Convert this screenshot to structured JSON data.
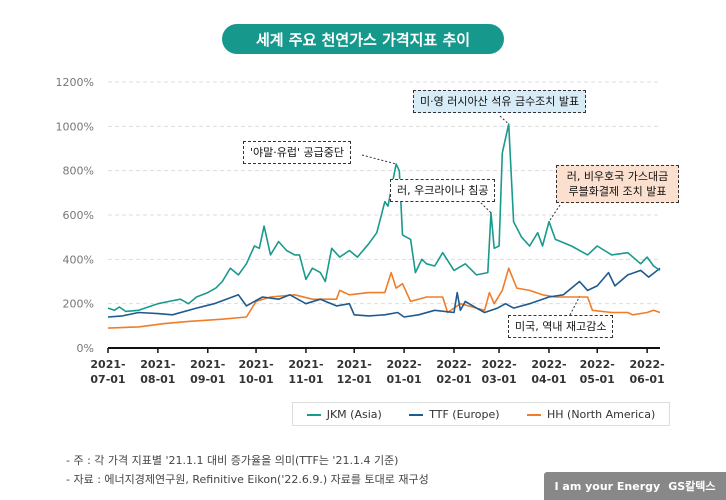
{
  "title": "세계 주요 천연가스 가격지표 추이",
  "chart_data": {
    "type": "line",
    "title": "세계 주요 천연가스 가격지표 추이",
    "ylim": [
      0,
      1200
    ],
    "yticks": [
      "0%",
      "200%",
      "400%",
      "600%",
      "800%",
      "1000%",
      "1200%"
    ],
    "xticks": [
      [
        "2021-",
        "07-01"
      ],
      [
        "2021-",
        "08-01"
      ],
      [
        "2021-",
        "09-01"
      ],
      [
        "2021-",
        "10-01"
      ],
      [
        "2021-",
        "11-01"
      ],
      [
        "2021-",
        "12-01"
      ],
      [
        "2022-",
        "01-01"
      ],
      [
        "2022-",
        "02-01"
      ],
      [
        "2022-",
        "03-01"
      ],
      [
        "2022-",
        "04-01"
      ],
      [
        "2022-",
        "05-01"
      ],
      [
        "2022-",
        "06-01"
      ]
    ],
    "xrange": [
      "2021-07-01",
      "2022-06-09"
    ],
    "grid": "horizontal dashed",
    "legend_position": "bottom-right",
    "series": [
      {
        "name": "JKM (Asia)",
        "color": "#1a9a8c",
        "points": [
          [
            "2021-07-01",
            180
          ],
          [
            "2021-07-05",
            170
          ],
          [
            "2021-07-08",
            185
          ],
          [
            "2021-07-12",
            165
          ],
          [
            "2021-07-20",
            170
          ],
          [
            "2021-07-28",
            190
          ],
          [
            "2021-08-01",
            200
          ],
          [
            "2021-08-08",
            210
          ],
          [
            "2021-08-15",
            220
          ],
          [
            "2021-08-20",
            200
          ],
          [
            "2021-08-25",
            230
          ],
          [
            "2021-09-01",
            250
          ],
          [
            "2021-09-06",
            270
          ],
          [
            "2021-09-10",
            300
          ],
          [
            "2021-09-15",
            360
          ],
          [
            "2021-09-20",
            330
          ],
          [
            "2021-09-25",
            380
          ],
          [
            "2021-09-30",
            460
          ],
          [
            "2021-10-03",
            450
          ],
          [
            "2021-10-06",
            550
          ],
          [
            "2021-10-10",
            420
          ],
          [
            "2021-10-15",
            480
          ],
          [
            "2021-10-20",
            440
          ],
          [
            "2021-10-25",
            420
          ],
          [
            "2021-10-28",
            420
          ],
          [
            "2021-11-01",
            310
          ],
          [
            "2021-11-05",
            360
          ],
          [
            "2021-11-10",
            340
          ],
          [
            "2021-11-13",
            300
          ],
          [
            "2021-11-17",
            450
          ],
          [
            "2021-11-22",
            410
          ],
          [
            "2021-11-28",
            440
          ],
          [
            "2021-12-03",
            410
          ],
          [
            "2021-12-10",
            470
          ],
          [
            "2021-12-15",
            520
          ],
          [
            "2021-12-20",
            660
          ],
          [
            "2021-12-22",
            640
          ],
          [
            "2021-12-27",
            830
          ],
          [
            "2021-12-29",
            800
          ],
          [
            "2021-12-31",
            510
          ],
          [
            "2022-01-05",
            490
          ],
          [
            "2022-01-08",
            340
          ],
          [
            "2022-01-12",
            400
          ],
          [
            "2022-01-15",
            380
          ],
          [
            "2022-01-20",
            370
          ],
          [
            "2022-01-25",
            430
          ],
          [
            "2022-02-01",
            350
          ],
          [
            "2022-02-08",
            380
          ],
          [
            "2022-02-15",
            330
          ],
          [
            "2022-02-22",
            340
          ],
          [
            "2022-02-24",
            610
          ],
          [
            "2022-02-26",
            450
          ],
          [
            "2022-03-01",
            460
          ],
          [
            "2022-03-03",
            880
          ],
          [
            "2022-03-07",
            1010
          ],
          [
            "2022-03-10",
            570
          ],
          [
            "2022-03-15",
            500
          ],
          [
            "2022-03-20",
            460
          ],
          [
            "2022-03-25",
            520
          ],
          [
            "2022-03-28",
            460
          ],
          [
            "2022-04-01",
            570
          ],
          [
            "2022-04-05",
            490
          ],
          [
            "2022-04-15",
            460
          ],
          [
            "2022-04-25",
            420
          ],
          [
            "2022-05-01",
            460
          ],
          [
            "2022-05-10",
            420
          ],
          [
            "2022-05-20",
            430
          ],
          [
            "2022-05-28",
            380
          ],
          [
            "2022-06-01",
            410
          ],
          [
            "2022-06-05",
            370
          ],
          [
            "2022-06-09",
            350
          ]
        ]
      },
      {
        "name": "TTF (Europe)",
        "color": "#1f5a8f",
        "points": [
          [
            "2021-07-01",
            140
          ],
          [
            "2021-07-10",
            145
          ],
          [
            "2021-07-20",
            160
          ],
          [
            "2021-08-01",
            155
          ],
          [
            "2021-08-10",
            150
          ],
          [
            "2021-08-25",
            180
          ],
          [
            "2021-09-05",
            200
          ],
          [
            "2021-09-20",
            240
          ],
          [
            "2021-09-25",
            190
          ],
          [
            "2021-10-05",
            230
          ],
          [
            "2021-10-15",
            220
          ],
          [
            "2021-10-22",
            240
          ],
          [
            "2021-11-01",
            200
          ],
          [
            "2021-11-10",
            220
          ],
          [
            "2021-11-20",
            190
          ],
          [
            "2021-11-28",
            200
          ],
          [
            "2021-12-01",
            150
          ],
          [
            "2021-12-10",
            145
          ],
          [
            "2021-12-20",
            150
          ],
          [
            "2021-12-28",
            160
          ],
          [
            "2022-01-01",
            140
          ],
          [
            "2022-01-10",
            150
          ],
          [
            "2022-01-20",
            170
          ],
          [
            "2022-02-01",
            160
          ],
          [
            "2022-02-03",
            250
          ],
          [
            "2022-02-05",
            170
          ],
          [
            "2022-02-08",
            210
          ],
          [
            "2022-02-15",
            180
          ],
          [
            "2022-02-20",
            160
          ],
          [
            "2022-02-28",
            180
          ],
          [
            "2022-03-05",
            200
          ],
          [
            "2022-03-10",
            180
          ],
          [
            "2022-03-20",
            200
          ],
          [
            "2022-04-01",
            230
          ],
          [
            "2022-04-10",
            240
          ],
          [
            "2022-04-20",
            300
          ],
          [
            "2022-04-25",
            260
          ],
          [
            "2022-05-01",
            280
          ],
          [
            "2022-05-08",
            340
          ],
          [
            "2022-05-12",
            280
          ],
          [
            "2022-05-20",
            330
          ],
          [
            "2022-05-28",
            350
          ],
          [
            "2022-06-02",
            320
          ],
          [
            "2022-06-09",
            360
          ]
        ]
      },
      {
        "name": "HH (North America)",
        "color": "#f07d2a",
        "points": [
          [
            "2021-07-01",
            90
          ],
          [
            "2021-07-20",
            95
          ],
          [
            "2021-08-05",
            110
          ],
          [
            "2021-08-20",
            120
          ],
          [
            "2021-09-10",
            130
          ],
          [
            "2021-09-25",
            140
          ],
          [
            "2021-10-01",
            210
          ],
          [
            "2021-10-10",
            230
          ],
          [
            "2021-10-25",
            240
          ],
          [
            "2021-11-05",
            220
          ],
          [
            "2021-11-20",
            220
          ],
          [
            "2021-11-22",
            260
          ],
          [
            "2021-11-28",
            240
          ],
          [
            "2021-12-10",
            250
          ],
          [
            "2021-12-20",
            250
          ],
          [
            "2021-12-24",
            340
          ],
          [
            "2021-12-27",
            270
          ],
          [
            "2021-12-31",
            290
          ],
          [
            "2022-01-05",
            210
          ],
          [
            "2022-01-15",
            230
          ],
          [
            "2022-01-25",
            230
          ],
          [
            "2022-01-28",
            160
          ],
          [
            "2022-02-05",
            200
          ],
          [
            "2022-02-15",
            180
          ],
          [
            "2022-02-20",
            170
          ],
          [
            "2022-02-23",
            250
          ],
          [
            "2022-02-26",
            200
          ],
          [
            "2022-03-03",
            260
          ],
          [
            "2022-03-07",
            360
          ],
          [
            "2022-03-12",
            270
          ],
          [
            "2022-03-20",
            260
          ],
          [
            "2022-03-28",
            240
          ],
          [
            "2022-04-05",
            230
          ],
          [
            "2022-04-25",
            230
          ],
          [
            "2022-04-28",
            170
          ],
          [
            "2022-05-10",
            160
          ],
          [
            "2022-05-20",
            160
          ],
          [
            "2022-05-23",
            150
          ],
          [
            "2022-06-01",
            160
          ],
          [
            "2022-06-05",
            170
          ],
          [
            "2022-06-09",
            160
          ]
        ]
      }
    ],
    "annotations": [
      "'야말·유럽' 공급중단",
      "러, 우크라이나 침공",
      "미·영 러시아산 석유 금수조치 발표",
      "러, 비우호국 가스대금 루블화결제 조치 발표",
      "미국, 역내 재고감소"
    ]
  },
  "notes": [
    "- 주 : 각 가격 지표별 '21.1.1 대비 증가율을 의미(TTF는 '21.1.4 기준)",
    "- 자료 : 에너지경제연구원, Refinitive Eikon('22.6.9.) 자료를 토대로 재구성"
  ],
  "brand": {
    "slogan": "I am your Energy",
    "logo": "GS칼텍스"
  }
}
